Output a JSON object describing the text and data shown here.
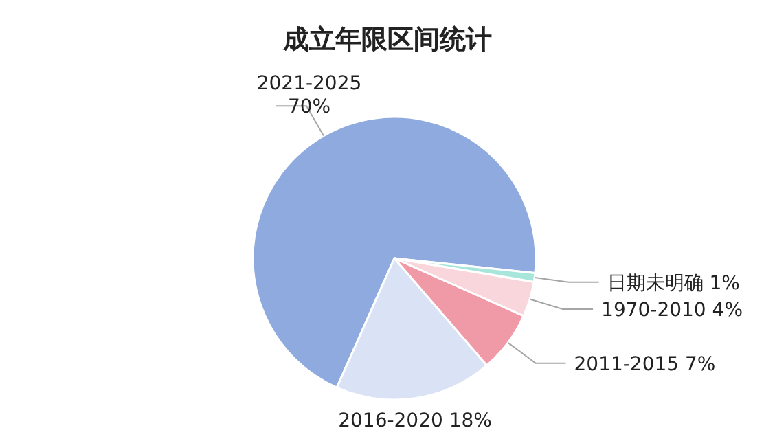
{
  "chart_data": {
    "type": "pie",
    "title": "成立年限区间统计",
    "categories": [
      "2021-2025",
      "2016-2020",
      "2011-2015",
      "1970-2010",
      "日期未明确"
    ],
    "values": [
      70,
      18,
      7,
      4,
      1
    ],
    "value_labels": [
      "70%",
      "18%",
      "7%",
      "4%",
      "1%"
    ],
    "colors": [
      "#8eaadf",
      "#dae3f5",
      "#ef9aa6",
      "#f9d6dc",
      "#a8e6dc"
    ]
  }
}
